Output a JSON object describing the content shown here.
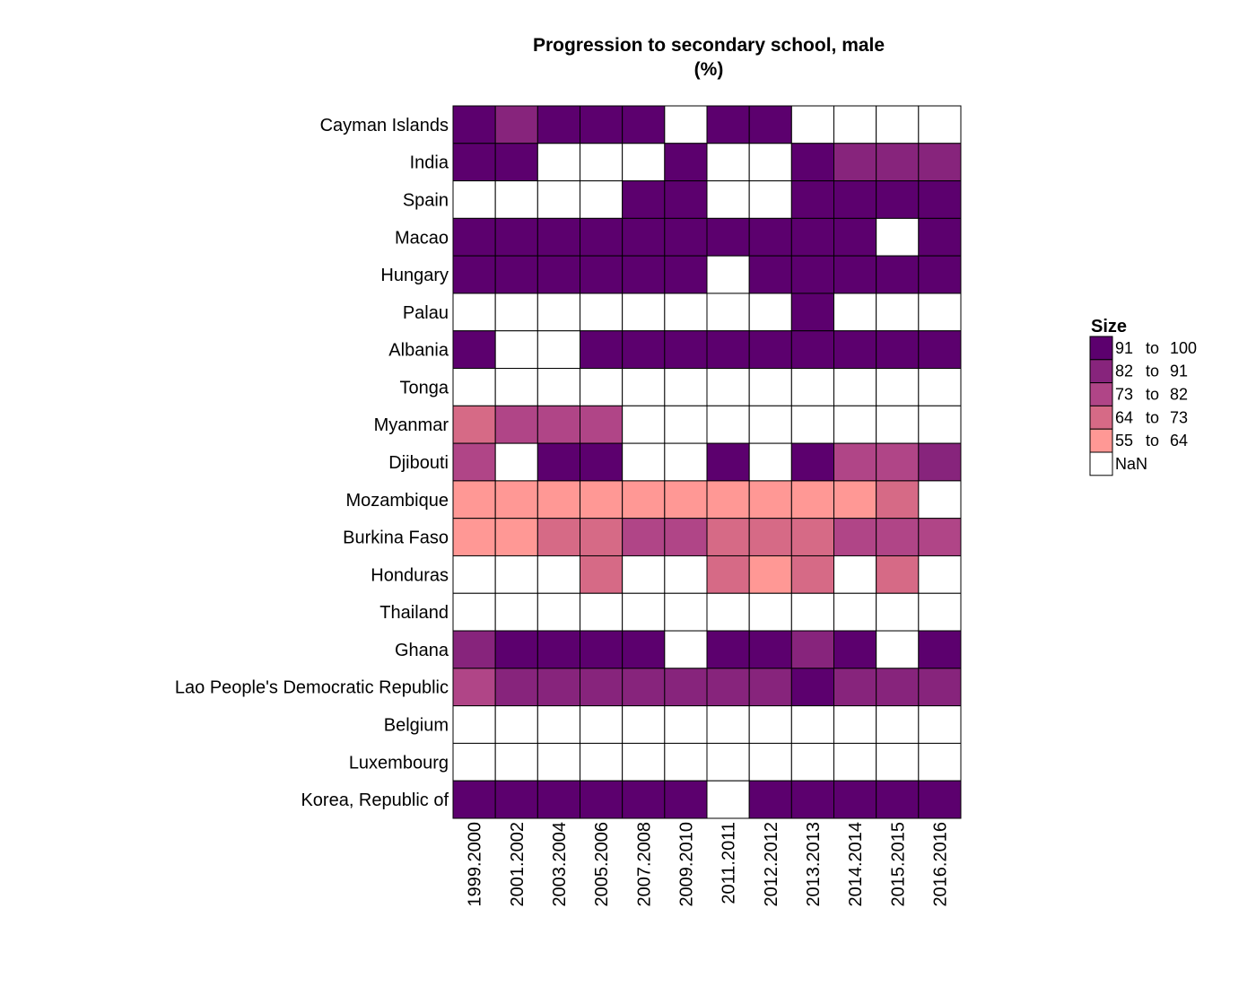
{
  "chart_data": {
    "type": "heatmap",
    "title": "Progression to secondary school, male",
    "subtitle": "(%)",
    "columns": [
      "1999.2000",
      "2001.2002",
      "2003.2004",
      "2005.2006",
      "2007.2008",
      "2009.2010",
      "2011.2011",
      "2012.2012",
      "2013.2013",
      "2014.2014",
      "2015.2015",
      "2016.2016"
    ],
    "rows": [
      "Cayman Islands",
      "India",
      "Spain",
      "Macao",
      "Hungary",
      "Palau",
      "Albania",
      "Tonga",
      "Myanmar",
      "Djibouti",
      "Mozambique",
      "Burkina Faso",
      "Honduras",
      "Thailand",
      "Ghana",
      "Lao People's Democratic Republic",
      "Belgium",
      "Luxembourg",
      "Korea, Republic of"
    ],
    "values": [
      [
        95,
        86,
        95,
        95,
        95,
        null,
        95,
        95,
        null,
        null,
        null,
        null
      ],
      [
        95,
        95,
        null,
        null,
        null,
        95,
        null,
        null,
        95,
        86,
        86,
        85
      ],
      [
        null,
        null,
        null,
        null,
        97,
        97,
        null,
        null,
        97,
        97,
        97,
        97
      ],
      [
        95,
        95,
        95,
        95,
        95,
        95,
        95,
        95,
        95,
        95,
        null,
        95
      ],
      [
        96,
        96,
        96,
        96,
        96,
        96,
        null,
        96,
        96,
        96,
        96,
        96
      ],
      [
        null,
        null,
        null,
        null,
        null,
        null,
        null,
        null,
        95,
        null,
        null,
        null
      ],
      [
        95,
        null,
        null,
        95,
        95,
        95,
        95,
        95,
        95,
        95,
        95,
        95
      ],
      [
        null,
        null,
        null,
        null,
        null,
        null,
        null,
        null,
        null,
        null,
        null,
        null
      ],
      [
        68,
        78,
        78,
        78,
        null,
        null,
        null,
        null,
        null,
        null,
        null,
        null
      ],
      [
        78,
        null,
        95,
        95,
        null,
        null,
        95,
        null,
        95,
        78,
        78,
        85
      ],
      [
        60,
        60,
        60,
        60,
        60,
        60,
        60,
        60,
        60,
        60,
        68,
        null
      ],
      [
        60,
        60,
        68,
        68,
        77,
        77,
        68,
        68,
        68,
        77,
        77,
        77
      ],
      [
        null,
        null,
        null,
        68,
        null,
        null,
        68,
        60,
        68,
        null,
        68,
        null
      ],
      [
        null,
        null,
        null,
        null,
        null,
        null,
        null,
        null,
        null,
        null,
        null,
        null
      ],
      [
        85,
        95,
        95,
        95,
        95,
        null,
        95,
        95,
        85,
        95,
        null,
        95
      ],
      [
        78,
        85,
        85,
        85,
        85,
        85,
        85,
        85,
        93,
        85,
        85,
        85
      ],
      [
        null,
        null,
        null,
        null,
        null,
        null,
        null,
        null,
        null,
        null,
        null,
        null
      ],
      [
        null,
        null,
        null,
        null,
        null,
        null,
        null,
        null,
        null,
        null,
        null,
        null
      ],
      [
        95,
        95,
        95,
        95,
        95,
        95,
        null,
        95,
        95,
        95,
        95,
        95
      ]
    ],
    "legend": {
      "title": "Size",
      "position": "right",
      "bins": [
        {
          "from": "91",
          "to": "100",
          "min": 91,
          "max": 100,
          "color": "#5c006e"
        },
        {
          "from": "82",
          "to": "91",
          "min": 82,
          "max": 91,
          "color": "#87247c"
        },
        {
          "from": "73",
          "to": "82",
          "min": 73,
          "max": 82,
          "color": "#b04587"
        },
        {
          "from": "64",
          "to": "73",
          "min": 64,
          "max": 73,
          "color": "#d66a86"
        },
        {
          "from": "55",
          "to": "64",
          "min": 55,
          "max": 64,
          "color": "#ff9895"
        }
      ],
      "nan_label": "NaN",
      "nan_color": "#ffffff",
      "joiner": "to"
    }
  }
}
